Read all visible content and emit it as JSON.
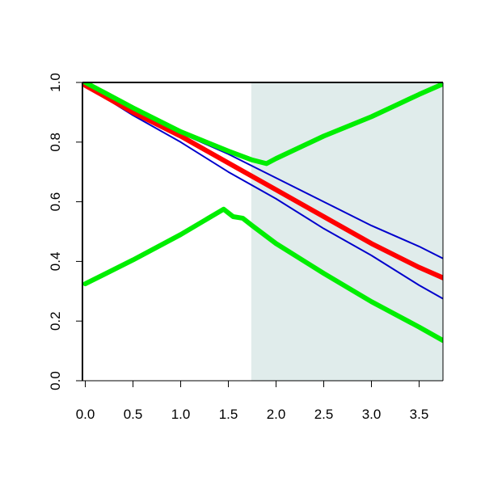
{
  "chart_data": {
    "type": "line",
    "title": "",
    "xlabel": "",
    "ylabel": "",
    "xlim": [
      -0.03,
      3.75
    ],
    "ylim": [
      0.0,
      1.0
    ],
    "x_ticks": [
      0.0,
      0.5,
      1.0,
      1.5,
      2.0,
      2.5,
      3.0,
      3.5
    ],
    "x_tick_labels": [
      "0.0",
      "0.5",
      "1.0",
      "1.5",
      "2.0",
      "2.5",
      "3.0",
      "3.5"
    ],
    "y_ticks": [
      0.0,
      0.2,
      0.4,
      0.6,
      0.8,
      1.0
    ],
    "y_tick_labels": [
      "0.0",
      "0.2",
      "0.4",
      "0.6",
      "0.8",
      "1.0"
    ],
    "grid": false,
    "legend": "none",
    "shaded_region": {
      "x_start": 1.74,
      "x_end": 3.75,
      "color": "#e0eceb"
    },
    "series": [
      {
        "color": "#ff0000",
        "width": "thick",
        "x": [
          0.0,
          0.5,
          1.0,
          1.5,
          2.0,
          2.5,
          3.0,
          3.5,
          3.75
        ],
        "y": [
          0.99,
          0.9,
          0.82,
          0.73,
          0.64,
          0.55,
          0.46,
          0.38,
          0.345
        ]
      },
      {
        "color": "#0000cc",
        "width": "thin",
        "x": [
          0.0,
          0.5,
          1.0,
          1.5,
          2.0,
          2.5,
          3.0,
          3.5,
          3.75
        ],
        "y": [
          0.99,
          0.91,
          0.83,
          0.76,
          0.68,
          0.6,
          0.52,
          0.45,
          0.41
        ]
      },
      {
        "color": "#0000cc",
        "width": "thin",
        "x": [
          0.0,
          0.5,
          1.0,
          1.5,
          2.0,
          2.5,
          3.0,
          3.5,
          3.75
        ],
        "y": [
          0.99,
          0.89,
          0.8,
          0.7,
          0.61,
          0.51,
          0.42,
          0.32,
          0.275
        ]
      },
      {
        "color": "#00ee00",
        "width": "thick",
        "x": [
          0.0,
          0.5,
          1.0,
          1.5,
          1.75,
          1.9,
          2.0,
          2.5,
          3.0,
          3.5,
          3.75
        ],
        "y": [
          1.0,
          0.915,
          0.835,
          0.77,
          0.74,
          0.728,
          0.745,
          0.82,
          0.885,
          0.96,
          0.995
        ]
      },
      {
        "color": "#00ee00",
        "width": "thick",
        "x": [
          0.0,
          0.5,
          1.0,
          1.45,
          1.55,
          1.65,
          1.75,
          2.0,
          2.5,
          3.0,
          3.5,
          3.75
        ],
        "y": [
          0.325,
          0.405,
          0.49,
          0.575,
          0.55,
          0.545,
          0.52,
          0.46,
          0.36,
          0.265,
          0.18,
          0.135
        ]
      }
    ]
  }
}
